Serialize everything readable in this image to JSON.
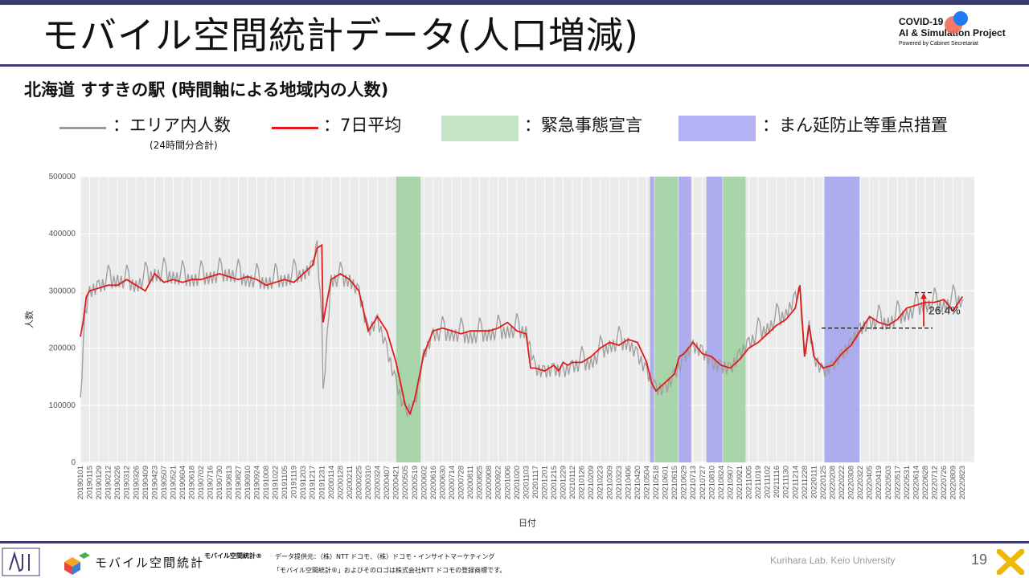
{
  "header": {
    "title": "モバイル空間統計データ(人口増減)",
    "logo_line1": "COVID-19",
    "logo_line2": "AI & Simulation Project",
    "logo_line3": "Powered by Cabinet Secretariat"
  },
  "subtitle": "北海道 すすきの駅 (時間軸による地域内の人数)",
  "legend": {
    "gray_label": "：エリア内人数",
    "gray_note": "(24時間分合計)",
    "red_label": "：7日平均",
    "green_label": "：緊急事態宣言",
    "blue_label": "：まん延防止等重点措置"
  },
  "colors": {
    "raw": "#a0a0a0",
    "avg": "#e31a1c",
    "emergency": "#9dd09d",
    "priority": "#a6a6ee",
    "panel": "#ebebeb",
    "frame": "#3b3b6e"
  },
  "chart_data": {
    "type": "line",
    "title": "",
    "xlabel": "日付",
    "ylabel": "人数",
    "ylim": [
      0,
      500000
    ],
    "yticks": [
      "0",
      "100000",
      "200000",
      "300000",
      "400000",
      "500000"
    ],
    "xticks": [
      "20190101",
      "20190115",
      "20190129",
      "20190212",
      "20190226",
      "20190312",
      "20190326",
      "20190409",
      "20190423",
      "20190507",
      "20190521",
      "20190604",
      "20190618",
      "20190702",
      "20190716",
      "20190730",
      "20190813",
      "20190827",
      "20190910",
      "20190924",
      "20191008",
      "20191022",
      "20191105",
      "20191119",
      "20191203",
      "20191217",
      "20191231",
      "20200114",
      "20200128",
      "20200211",
      "20200225",
      "20200310",
      "20200324",
      "20200407",
      "20200421",
      "20200505",
      "20200519",
      "20200602",
      "20200616",
      "20200630",
      "20200714",
      "20200728",
      "20200811",
      "20200825",
      "20200908",
      "20200922",
      "20201006",
      "20201020",
      "20201103",
      "20201117",
      "20201201",
      "20201215",
      "20201229",
      "20210112",
      "20210126",
      "20210209",
      "20210223",
      "20210309",
      "20210323",
      "20210406",
      "20210420",
      "20210504",
      "20210518",
      "20210601",
      "20210615",
      "20210629",
      "20210713",
      "20210727",
      "20210810",
      "20210824",
      "20210907",
      "20210921",
      "20211005",
      "20211019",
      "20211102",
      "20211116",
      "20211130",
      "20211214",
      "20211228",
      "20220111",
      "20220125",
      "20220208",
      "20220222",
      "20220308",
      "20220322",
      "20220405",
      "20220419",
      "20220503",
      "20220517",
      "20220531",
      "20220614",
      "20220628",
      "20220712",
      "20220726",
      "20220809",
      "20220823"
    ],
    "series": [
      {
        "name": "エリア内人数",
        "x": [
          "20190101",
          "20190108",
          "20190115",
          "20190129",
          "20190226",
          "20190326",
          "20190423",
          "20190521",
          "20190618",
          "20190716",
          "20190813",
          "20190910",
          "20191008",
          "20191105",
          "20191203",
          "20191217",
          "20191224",
          "20191231",
          "20200102",
          "20200114",
          "20200211",
          "20200225",
          "20200310",
          "20200324",
          "20200407",
          "20200421",
          "20200505",
          "20200519",
          "20200602",
          "20200616",
          "20200714",
          "20200811",
          "20200908",
          "20201006",
          "20201103",
          "20201117",
          "20201201",
          "20201215",
          "20201229",
          "20210112",
          "20210209",
          "20210309",
          "20210406",
          "20210420",
          "20210504",
          "20210518",
          "20210601",
          "20210615",
          "20210629",
          "20210713",
          "20210727",
          "20210810",
          "20210824",
          "20210907",
          "20210921",
          "20211005",
          "20211102",
          "20211130",
          "20211214",
          "20211221",
          "20211228",
          "20220104",
          "20220111",
          "20220125",
          "20220208",
          "20220222",
          "20220308",
          "20220322",
          "20220405",
          "20220503",
          "20220531",
          "20220628",
          "20220726",
          "20220823"
        ],
        "values": [
          105000,
          260000,
          300000,
          310000,
          320000,
          310000,
          330000,
          325000,
          320000,
          325000,
          330000,
          320000,
          315000,
          320000,
          330000,
          345000,
          380000,
          245000,
          120000,
          320000,
          320000,
          300000,
          230000,
          250000,
          200000,
          140000,
          90000,
          100000,
          190000,
          225000,
          225000,
          220000,
          225000,
          230000,
          230000,
          165000,
          160000,
          165000,
          160000,
          170000,
          175000,
          205000,
          210000,
          190000,
          160000,
          130000,
          130000,
          155000,
          185000,
          205000,
          195000,
          175000,
          170000,
          165000,
          190000,
          210000,
          235000,
          260000,
          290000,
          300000,
          185000,
          240000,
          185000,
          160000,
          170000,
          190000,
          210000,
          235000,
          245000,
          245000,
          260000,
          275000,
          275000,
          285000
        ]
      },
      {
        "name": "7日平均",
        "x": [
          "20190101",
          "20190105",
          "20190110",
          "20190115",
          "20190129",
          "20190212",
          "20190226",
          "20190312",
          "20190326",
          "20190409",
          "20190423",
          "20190507",
          "20190521",
          "20190604",
          "20190618",
          "20190702",
          "20190716",
          "20190730",
          "20190813",
          "20190827",
          "20190910",
          "20190924",
          "20191008",
          "20191022",
          "20191105",
          "20191119",
          "20191203",
          "20191217",
          "20191224",
          "20191231",
          "20200102",
          "20200114",
          "20200128",
          "20200211",
          "20200225",
          "20200310",
          "20200324",
          "20200407",
          "20200421",
          "20200505",
          "20200512",
          "20200519",
          "20200602",
          "20200616",
          "20200630",
          "20200714",
          "20200728",
          "20200811",
          "20200825",
          "20200908",
          "20200922",
          "20201006",
          "20201020",
          "20201103",
          "20201110",
          "20201117",
          "20201201",
          "20201215",
          "20201222",
          "20201229",
          "20210105",
          "20210112",
          "20210126",
          "20210209",
          "20210223",
          "20210309",
          "20210323",
          "20210406",
          "20210420",
          "20210504",
          "20210511",
          "20210518",
          "20210601",
          "20210615",
          "20210622",
          "20210629",
          "20210713",
          "20210727",
          "20210810",
          "20210824",
          "20210907",
          "20210921",
          "20211005",
          "20211019",
          "20211102",
          "20211116",
          "20211130",
          "20211214",
          "20211221",
          "20211228",
          "20220104",
          "20220111",
          "20220125",
          "20220208",
          "20220222",
          "20220308",
          "20220322",
          "20220405",
          "20220419",
          "20220503",
          "20220517",
          "20220531",
          "20220614",
          "20220628",
          "20220712",
          "20220726",
          "20220809",
          "20220823"
        ],
        "values": [
          220000,
          245000,
          290000,
          300000,
          305000,
          310000,
          310000,
          320000,
          310000,
          300000,
          330000,
          315000,
          320000,
          315000,
          320000,
          320000,
          325000,
          330000,
          325000,
          320000,
          325000,
          320000,
          310000,
          315000,
          320000,
          315000,
          330000,
          345000,
          375000,
          380000,
          245000,
          320000,
          330000,
          320000,
          300000,
          230000,
          255000,
          230000,
          175000,
          100000,
          85000,
          110000,
          190000,
          230000,
          235000,
          230000,
          225000,
          230000,
          230000,
          230000,
          235000,
          245000,
          230000,
          225000,
          165000,
          165000,
          160000,
          170000,
          160000,
          175000,
          170000,
          175000,
          175000,
          185000,
          200000,
          210000,
          205000,
          215000,
          210000,
          175000,
          140000,
          125000,
          140000,
          155000,
          185000,
          190000,
          210000,
          190000,
          185000,
          170000,
          165000,
          180000,
          200000,
          210000,
          225000,
          240000,
          250000,
          270000,
          310000,
          185000,
          240000,
          185000,
          165000,
          170000,
          190000,
          205000,
          230000,
          255000,
          245000,
          240000,
          250000,
          270000,
          275000,
          280000,
          280000,
          285000,
          265000,
          290000
        ]
      }
    ],
    "emergency_periods": [
      [
        "20200421",
        "20200528"
      ],
      [
        "20210516",
        "20210620"
      ],
      [
        "20210827",
        "20210930"
      ]
    ],
    "priority_periods": [
      [
        "20210509",
        "20210515"
      ],
      [
        "20210621",
        "20210710"
      ],
      [
        "20210802",
        "20210826"
      ],
      [
        "20220127",
        "20220321"
      ]
    ],
    "annotation": {
      "label": "26.4%",
      "from_value": 235000,
      "to_value": 297000
    }
  },
  "footer": {
    "brand": "モバイル空間統計",
    "brand_reg": "モバイル空間統計®",
    "data_source": "データ提供元：（株）NTT ドコモ、（株）ドコモ・インサイトマーケティング",
    "trademark": "「モバイル空間統計®」およびそのロゴは株式会社NTT ドコモの登録商標です。",
    "credit": "Kurihara Lab. Keio University",
    "page": "19"
  }
}
